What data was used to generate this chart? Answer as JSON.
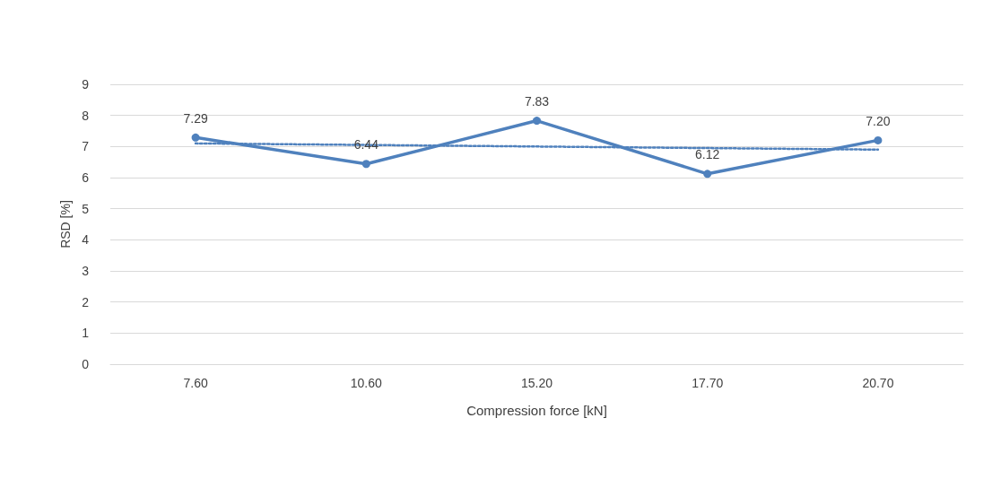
{
  "chart_data": {
    "type": "line",
    "xlabel": "Compression force [kN]",
    "ylabel": "RSD [%]",
    "categories": [
      "7.60",
      "10.60",
      "15.20",
      "17.70",
      "20.70"
    ],
    "series": [
      {
        "color": "#4f81bd",
        "values": [
          7.29,
          6.44,
          7.83,
          6.12,
          7.2
        ],
        "value_labels": [
          "7.29",
          "6.44",
          "7.83",
          "6.12",
          "7.20"
        ],
        "marker": "circle",
        "line_style": "solid"
      },
      {
        "type": "line",
        "color": "#4f81bd",
        "values": [
          7.1,
          7.05,
          7.0,
          6.95,
          6.9
        ],
        "marker": "none",
        "line_style": "dotted"
      }
    ],
    "ylim": [
      0,
      9
    ],
    "yticks": [
      0,
      1,
      2,
      3,
      4,
      5,
      6,
      7,
      8,
      9
    ],
    "grid": "y"
  }
}
